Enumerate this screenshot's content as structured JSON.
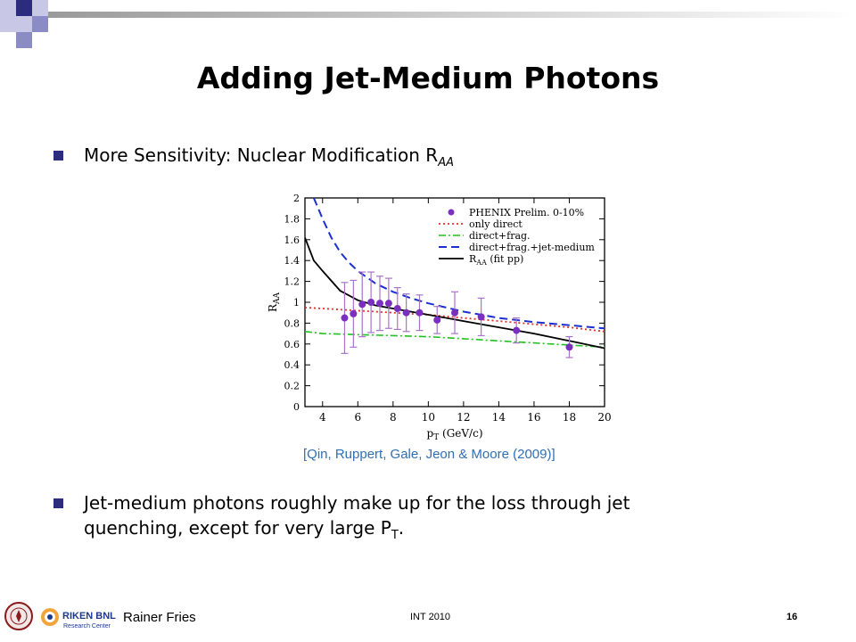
{
  "slide": {
    "title": "Adding Jet-Medium Photons",
    "bullet1": {
      "text": "More Sensitivity: Nuclear Modification R",
      "sub": "AA"
    },
    "bullet2": {
      "line1": "Jet-medium photons roughly make up for the loss through jet",
      "line2_pre": "quenching, except for very large P",
      "line2_sub": "T",
      "line2_post": "."
    },
    "citation": "[Qin, Ruppert, Gale, Jeon & Moore (2009)]",
    "footer": {
      "author": "Rainer Fries",
      "event": "INT 2010",
      "page": "16",
      "logo_text": "RIKEN BNL",
      "logo_subtext": "Research Center"
    }
  },
  "chart_data": {
    "type": "scatter",
    "xlabel": "p",
    "xlabel_sub": "T",
    "xlabel_unit": "(GeV/c)",
    "ylabel": "R",
    "ylabel_sub": "AA",
    "xlim": [
      3,
      20
    ],
    "ylim": [
      0,
      2
    ],
    "xticks": [
      4,
      6,
      8,
      10,
      12,
      14,
      16,
      18,
      20
    ],
    "yticks": [
      0,
      0.2,
      0.4,
      0.6,
      0.8,
      1,
      1.2,
      1.4,
      1.6,
      1.8,
      2
    ],
    "legend_position": "top-right",
    "colors": {
      "points": "#7b2fbe",
      "errors": "#a874c8",
      "only_direct": "#e0302a",
      "direct_frag": "#22c022",
      "jet_medium": "#1c2fd0",
      "fit_pp": "#000000"
    },
    "points": {
      "name": "PHENIX Prelim. 0-10%",
      "x": [
        5.25,
        5.75,
        6.25,
        6.75,
        7.25,
        7.75,
        8.25,
        8.75,
        9.5,
        10.5,
        11.5,
        13,
        15,
        18
      ],
      "y": [
        0.85,
        0.89,
        0.98,
        1.0,
        0.99,
        0.99,
        0.94,
        0.9,
        0.9,
        0.83,
        0.9,
        0.86,
        0.73,
        0.57
      ],
      "err": [
        0.34,
        0.32,
        0.31,
        0.29,
        0.26,
        0.24,
        0.2,
        0.18,
        0.17,
        0.13,
        0.2,
        0.18,
        0.12,
        0.1
      ]
    },
    "series": [
      {
        "name": "only direct",
        "style": "dotted",
        "x": [
          3,
          4,
          5,
          6,
          7,
          8,
          9,
          10,
          12,
          14,
          16,
          18,
          20
        ],
        "y": [
          0.95,
          0.94,
          0.93,
          0.92,
          0.91,
          0.9,
          0.89,
          0.88,
          0.85,
          0.82,
          0.79,
          0.76,
          0.72
        ]
      },
      {
        "name": "direct+frag.",
        "style": "dashdot",
        "x": [
          3,
          4,
          6,
          8,
          10,
          12,
          14,
          16,
          18,
          20
        ],
        "y": [
          0.72,
          0.7,
          0.69,
          0.68,
          0.67,
          0.65,
          0.63,
          0.61,
          0.59,
          0.57
        ]
      },
      {
        "name": "direct+frag.+jet-medium",
        "style": "dashed",
        "x": [
          3.5,
          4,
          4.5,
          5,
          5.5,
          6,
          7,
          8,
          9,
          10,
          12,
          14,
          16,
          18,
          20
        ],
        "y": [
          2.0,
          1.8,
          1.62,
          1.48,
          1.38,
          1.3,
          1.18,
          1.1,
          1.04,
          0.99,
          0.91,
          0.85,
          0.81,
          0.78,
          0.75
        ]
      },
      {
        "name": "R",
        "name_sub": "AA",
        "name_suffix": "(fit pp)",
        "style": "solid",
        "x": [
          3,
          3.5,
          4,
          5,
          6,
          7,
          8,
          10,
          12,
          14,
          16,
          18,
          20
        ],
        "y": [
          1.62,
          1.4,
          1.3,
          1.11,
          1.02,
          0.97,
          0.94,
          0.88,
          0.82,
          0.76,
          0.7,
          0.63,
          0.56
        ]
      }
    ]
  }
}
